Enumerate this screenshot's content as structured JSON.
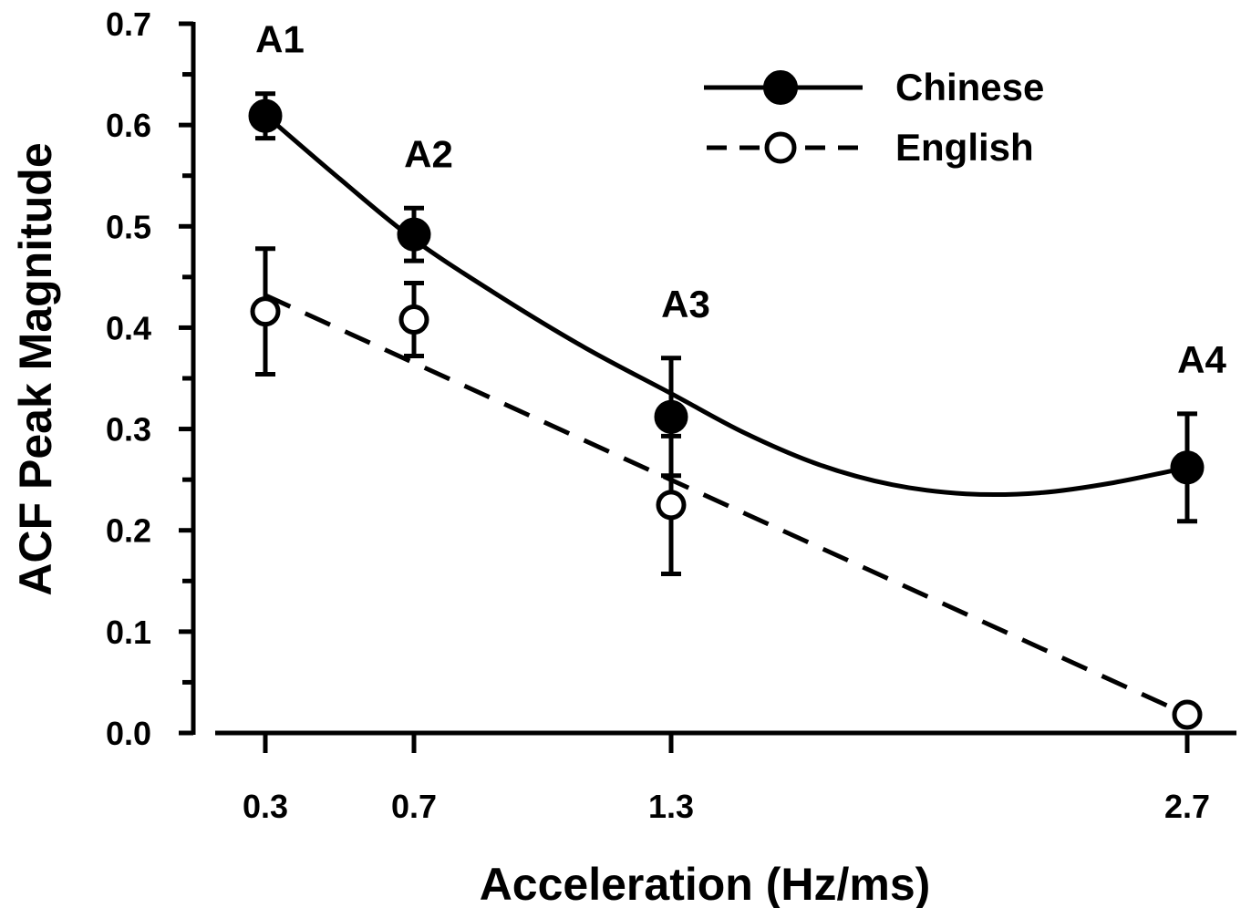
{
  "chart_data": {
    "type": "line",
    "title": "",
    "xlabel": "Acceleration (Hz/ms)",
    "ylabel": "ACF Peak Magnitude",
    "x": [
      0.3,
      0.7,
      1.3,
      2.7
    ],
    "x_tick_labels": [
      "0.3",
      "0.7",
      "1.3",
      "2.7"
    ],
    "ylim": [
      0.0,
      0.7
    ],
    "y_ticks": [
      0.0,
      0.1,
      0.2,
      0.3,
      0.4,
      0.5,
      0.6,
      0.7
    ],
    "y_tick_labels": [
      "0.0",
      "0.1",
      "0.2",
      "0.3",
      "0.4",
      "0.5",
      "0.6",
      "0.7"
    ],
    "grid": false,
    "legend_position": "top-right",
    "series": [
      {
        "name": "Chinese",
        "marker": "filled-circle",
        "line_style": "solid",
        "values": [
          0.609,
          0.492,
          0.312,
          0.262
        ],
        "error": [
          0.022,
          0.026,
          0.058,
          0.053
        ],
        "fit_line": [
          [
            0.3,
            0.61
          ],
          [
            0.5,
            0.547
          ],
          [
            0.7,
            0.487
          ],
          [
            0.9,
            0.431
          ],
          [
            1.1,
            0.38
          ],
          [
            1.3,
            0.335
          ],
          [
            1.5,
            0.296
          ],
          [
            1.7,
            0.265
          ],
          [
            1.9,
            0.245
          ],
          [
            2.1,
            0.236
          ],
          [
            2.3,
            0.237
          ],
          [
            2.5,
            0.247
          ],
          [
            2.7,
            0.262
          ]
        ]
      },
      {
        "name": "English",
        "marker": "open-circle",
        "line_style": "dashed",
        "values": [
          0.416,
          0.408,
          0.225,
          0.018
        ],
        "error": [
          0.062,
          0.036,
          0.068,
          0.0
        ],
        "fit_line": [
          [
            0.3,
            0.432
          ],
          [
            2.7,
            0.018
          ]
        ]
      }
    ],
    "annotations": [
      {
        "text": "A1",
        "x": 0.3
      },
      {
        "text": "A2",
        "x": 0.7
      },
      {
        "text": "A3",
        "x": 1.3
      },
      {
        "text": "A4",
        "x": 2.7
      }
    ]
  }
}
